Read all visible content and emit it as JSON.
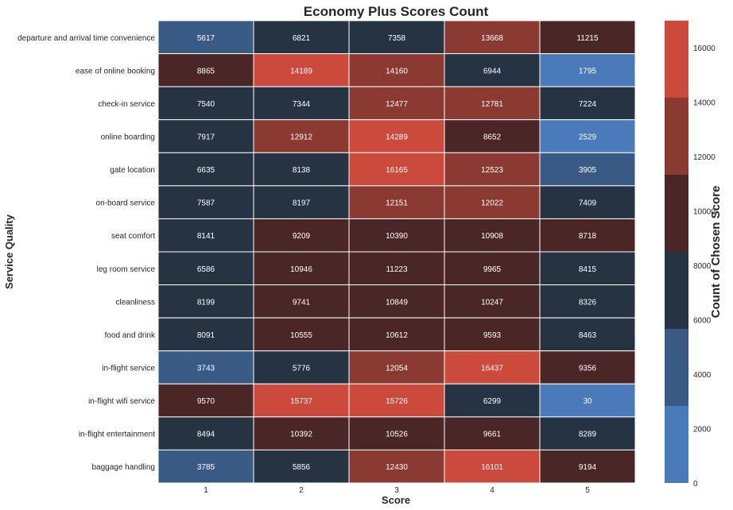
{
  "chart_data": {
    "type": "heatmap",
    "title": "Economy Plus Scores Count",
    "xlabel": "Score",
    "ylabel": "Service Quality",
    "colorbar_label": "Count of Chosen Score",
    "x_categories": [
      "1",
      "2",
      "3",
      "4",
      "5"
    ],
    "y_categories": [
      "departure and arrival time convenience",
      "ease of online booking",
      "check-in service",
      "online boarding",
      "gate location",
      "on-board service",
      "seat comfort",
      "leg room service",
      "cleanliness",
      "food and drink",
      "in-flight service",
      "in-flight wifi service",
      "in-flight entertainment",
      "baggage handling"
    ],
    "values": [
      [
        5617,
        6821,
        7358,
        13668,
        11215
      ],
      [
        8865,
        14189,
        14160,
        6944,
        1795
      ],
      [
        7540,
        7344,
        12477,
        12781,
        7224
      ],
      [
        7917,
        12912,
        14289,
        8652,
        2529
      ],
      [
        6635,
        8138,
        16165,
        12523,
        3905
      ],
      [
        7587,
        8197,
        12151,
        12022,
        7409
      ],
      [
        8141,
        9209,
        10390,
        10908,
        8718
      ],
      [
        6586,
        10946,
        11223,
        9965,
        8415
      ],
      [
        8199,
        9741,
        10849,
        10247,
        8326
      ],
      [
        8091,
        10555,
        10612,
        9593,
        8463
      ],
      [
        3743,
        5776,
        12054,
        16437,
        9356
      ],
      [
        9570,
        15737,
        15726,
        6299,
        30
      ],
      [
        8494,
        10392,
        10526,
        9661,
        8289
      ],
      [
        3785,
        5856,
        12430,
        16101,
        9194
      ]
    ],
    "colorbar_range": [
      0,
      17000
    ],
    "colorbar_ticks": [
      0,
      2000,
      4000,
      6000,
      8000,
      10000,
      12000,
      14000,
      16000
    ],
    "color_bins": [
      "#4a7ab9",
      "#3a5a86",
      "#263342",
      "#4a2726",
      "#8b3a31",
      "#cc4a3c"
    ],
    "grid": false
  }
}
